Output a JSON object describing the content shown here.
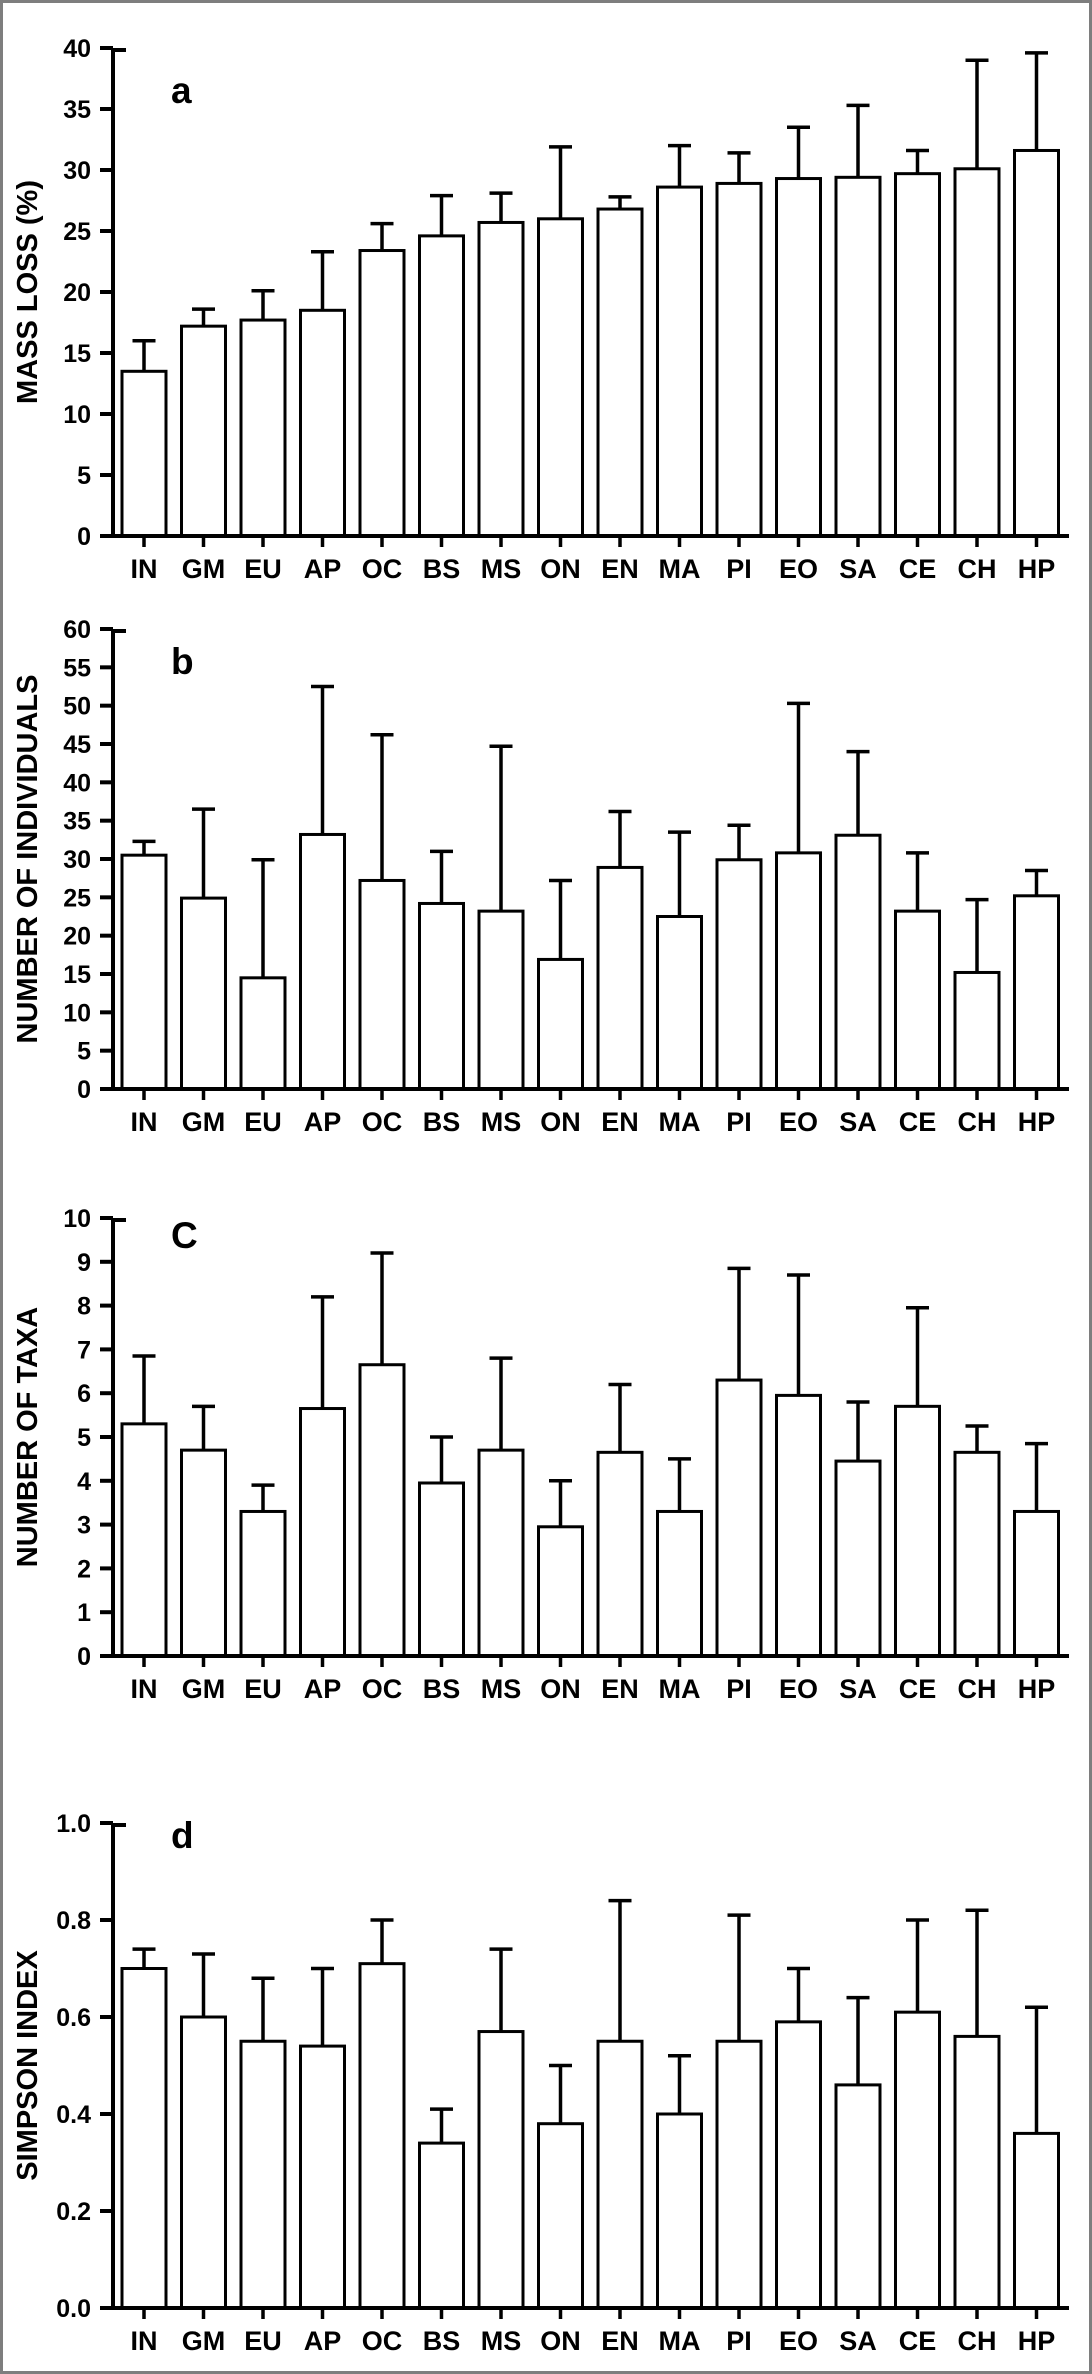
{
  "colors": {
    "ink": "#000000",
    "background": "#ffffff",
    "frame": "#7e7e7e"
  },
  "chart_data": [
    {
      "type": "bar",
      "panel_letter": "a",
      "title": "",
      "xlabel": "",
      "ylabel": "MASS LOSS (%)",
      "ylim": [
        0,
        40
      ],
      "ytick_step": 5,
      "ytick_decimals": 0,
      "grid": false,
      "legend_position": "none",
      "bar_fill": "#ffffff",
      "error_bars": "upper",
      "categories": [
        "IN",
        "GM",
        "EU",
        "AP",
        "OC",
        "BS",
        "MS",
        "ON",
        "EN",
        "MA",
        "PI",
        "EO",
        "SA",
        "CE",
        "CH",
        "HP"
      ],
      "values": [
        13.5,
        17.2,
        17.7,
        18.5,
        23.4,
        24.6,
        25.7,
        26.0,
        26.8,
        28.6,
        28.9,
        29.3,
        29.4,
        29.7,
        30.1,
        31.6
      ],
      "error_top": [
        16.0,
        18.6,
        20.1,
        23.3,
        25.6,
        27.9,
        28.1,
        31.9,
        27.8,
        32.0,
        31.4,
        33.5,
        35.3,
        31.6,
        39.0,
        39.6
      ]
    },
    {
      "type": "bar",
      "panel_letter": "b",
      "title": "",
      "xlabel": "",
      "ylabel": "NUMBER OF INDIVIDUALS",
      "ylim": [
        0,
        60
      ],
      "ytick_step": 5,
      "ytick_decimals": 0,
      "grid": false,
      "legend_position": "none",
      "bar_fill": "#ffffff",
      "error_bars": "upper",
      "categories": [
        "IN",
        "GM",
        "EU",
        "AP",
        "OC",
        "BS",
        "MS",
        "ON",
        "EN",
        "MA",
        "PI",
        "EO",
        "SA",
        "CE",
        "CH",
        "HP"
      ],
      "values": [
        30.5,
        24.9,
        14.5,
        33.2,
        27.2,
        24.2,
        23.2,
        16.9,
        28.9,
        22.5,
        29.9,
        30.8,
        33.1,
        23.2,
        15.2,
        25.2
      ],
      "error_top": [
        32.3,
        36.5,
        29.9,
        52.5,
        46.2,
        31.0,
        44.7,
        27.2,
        36.2,
        33.5,
        34.4,
        50.3,
        44.0,
        30.8,
        24.7,
        28.5
      ]
    },
    {
      "type": "bar",
      "panel_letter": "C",
      "title": "",
      "xlabel": "",
      "ylabel": "NUMBER OF TAXA",
      "ylim": [
        0,
        10
      ],
      "ytick_step": 1,
      "ytick_decimals": 0,
      "grid": false,
      "legend_position": "none",
      "bar_fill": "#ffffff",
      "error_bars": "upper",
      "categories": [
        "IN",
        "GM",
        "EU",
        "AP",
        "OC",
        "BS",
        "MS",
        "ON",
        "EN",
        "MA",
        "PI",
        "EO",
        "SA",
        "CE",
        "CH",
        "HP"
      ],
      "values": [
        5.3,
        4.7,
        3.3,
        5.65,
        6.65,
        3.95,
        4.7,
        2.95,
        4.65,
        3.3,
        6.3,
        5.95,
        4.45,
        5.7,
        4.65,
        3.3
      ],
      "error_top": [
        6.85,
        5.7,
        3.9,
        8.2,
        9.2,
        5.0,
        6.8,
        4.0,
        6.2,
        4.5,
        8.85,
        8.7,
        5.8,
        7.95,
        5.25,
        4.85
      ]
    },
    {
      "type": "bar",
      "panel_letter": "d",
      "title": "",
      "xlabel": "",
      "ylabel": "SIMPSON INDEX",
      "ylim": [
        0,
        1.0
      ],
      "ytick_step": 0.2,
      "ytick_decimals": 1,
      "grid": false,
      "legend_position": "none",
      "bar_fill": "#ffffff",
      "error_bars": "upper",
      "categories": [
        "IN",
        "GM",
        "EU",
        "AP",
        "OC",
        "BS",
        "MS",
        "ON",
        "EN",
        "MA",
        "PI",
        "EO",
        "SA",
        "CE",
        "CH",
        "HP"
      ],
      "values": [
        0.7,
        0.6,
        0.55,
        0.54,
        0.71,
        0.34,
        0.57,
        0.38,
        0.55,
        0.4,
        0.55,
        0.59,
        0.46,
        0.61,
        0.56,
        0.36
      ],
      "error_top": [
        0.74,
        0.73,
        0.68,
        0.7,
        0.8,
        0.41,
        0.74,
        0.5,
        0.84,
        0.52,
        0.81,
        0.7,
        0.64,
        0.8,
        0.82,
        0.62
      ]
    }
  ]
}
